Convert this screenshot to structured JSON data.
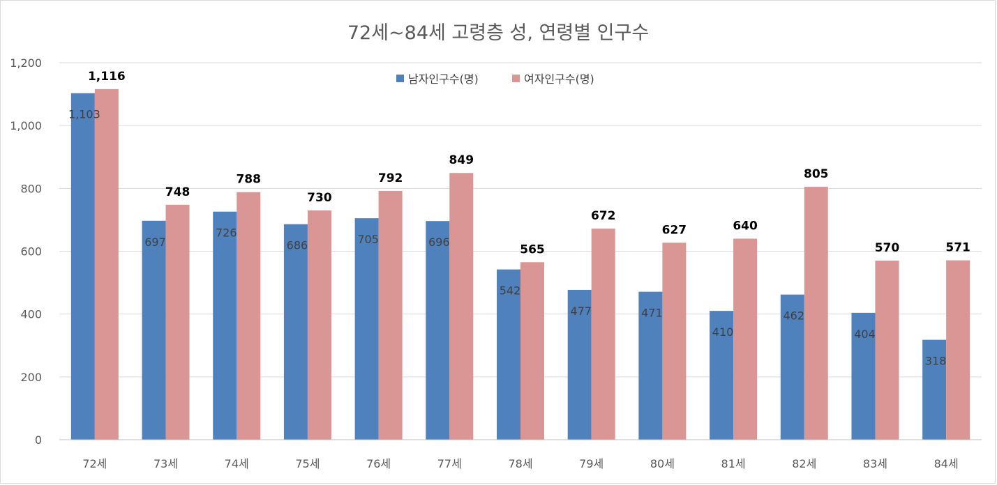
{
  "chart_data": {
    "type": "bar",
    "title": "72세~84세 고령층 성, 연령별 인구수",
    "categories": [
      "72세",
      "73세",
      "74세",
      "75세",
      "76세",
      "77세",
      "78세",
      "79세",
      "80세",
      "81세",
      "82세",
      "83세",
      "84세"
    ],
    "series": [
      {
        "name": "남자인구수(명)",
        "color": "#4f81bd",
        "values": [
          1103,
          697,
          726,
          686,
          705,
          696,
          542,
          477,
          471,
          410,
          462,
          404,
          318
        ],
        "labels": [
          "1,103",
          "697",
          "726",
          "686",
          "705",
          "696",
          "542",
          "477",
          "471",
          "410",
          "462",
          "404",
          "318"
        ]
      },
      {
        "name": "여자인구수(명)",
        "color": "#d99694",
        "values": [
          1116,
          748,
          788,
          730,
          792,
          849,
          565,
          672,
          627,
          640,
          805,
          570,
          571
        ],
        "labels": [
          "1,116",
          "748",
          "788",
          "730",
          "792",
          "849",
          "565",
          "672",
          "627",
          "640",
          "805",
          "570",
          "571"
        ]
      }
    ],
    "yticks": [
      "0",
      "200",
      "400",
      "600",
      "800",
      "1,000",
      "1,200"
    ],
    "ylim": [
      0,
      1200
    ],
    "grid": true,
    "legend_position": "top"
  }
}
